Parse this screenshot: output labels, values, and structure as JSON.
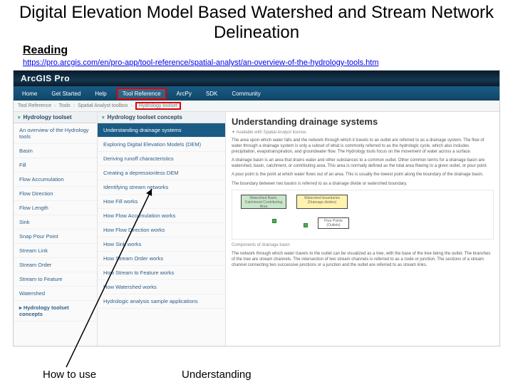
{
  "title": "Digital Elevation Model Based Watershed and Stream Network Delineation",
  "reading_label": "Reading",
  "reading_url": "https://pro.arcgis.com/en/pro-app/tool-reference/spatial-analyst/an-overview-of-the-hydrology-tools.htm",
  "topbar": {
    "logo": "ArcGIS Pro"
  },
  "navbar": {
    "items": [
      "Home",
      "Get Started",
      "Help",
      "Tool Reference",
      "ArcPy",
      "SDK",
      "Community"
    ],
    "highlight_index": 3
  },
  "crumbs": {
    "items": [
      "Tool Reference",
      "Tools",
      "Spatial Analyst toolbox",
      "Hydrology toolset"
    ],
    "highlight_index": 3
  },
  "col1": {
    "header": "Hydrology toolset",
    "items": [
      "An overview of the Hydrology tools",
      "Basin",
      "Fill",
      "Flow Accumulation",
      "Flow Direction",
      "Flow Length",
      "Sink",
      "Snap Pour Point",
      "Stream Link",
      "Stream Order",
      "Stream to Feature",
      "Watershed"
    ],
    "footer": "Hydrology toolset concepts"
  },
  "col2": {
    "header": "Hydrology toolset concepts",
    "items": [
      "Understanding drainage systems",
      "Exploring Digital Elevation Models (DEM)",
      "Deriving runoff characteristics",
      "Creating a depressionless DEM",
      "Identifying stream networks",
      "How Fill works",
      "How Flow Accumulation works",
      "How Flow Direction works",
      "How Sink works",
      "How Stream Order works",
      "How Stream to Feature works",
      "How Watershed works",
      "Hydrologic analysis sample applications"
    ],
    "selected_index": 0
  },
  "article": {
    "title": "Understanding drainage systems",
    "available": "Available with Spatial Analyst license.",
    "p1": "The area upon which water falls and the network through which it travels to an outlet are referred to as a drainage system. The flow of water through a drainage system is only a subset of what is commonly referred to as the hydrologic cycle, which also includes precipitation, evapotranspiration, and groundwater flow. The Hydrology tools focus on the movement of water across a surface.",
    "p2": "A drainage basin is an area that drains water and other substances to a common outlet. Other common terms for a drainage basin are watershed, basin, catchment, or contributing area. This area is normally defined as the total area flowing to a given outlet, or pour point.",
    "p3": "A pour point is the point at which water flows out of an area. This is usually the lowest point along the boundary of the drainage basin.",
    "p4": "The boundary between two basins is referred to as a drainage divide or watershed boundary.",
    "diagram": {
      "watershed_label": "Watershed\nBasin, Catchment\nContributing Area",
      "boundaries_label": "Watershed boundaries\n(Drainage divides)",
      "pour_label": "Pour Points\n(Outlets)"
    },
    "subhead": "Components of drainage basin",
    "p5": "The network through which water travels to the outlet can be visualized as a tree, with the base of the tree being the outlet. The branches of the tree are stream channels. The intersection of two stream channels is referred to as a node or junction. The sections of a stream channel connecting two successive junctions or a junction and the outlet are referred to as stream links."
  },
  "bottom": {
    "howto": "How to use",
    "understanding": "Understanding"
  }
}
